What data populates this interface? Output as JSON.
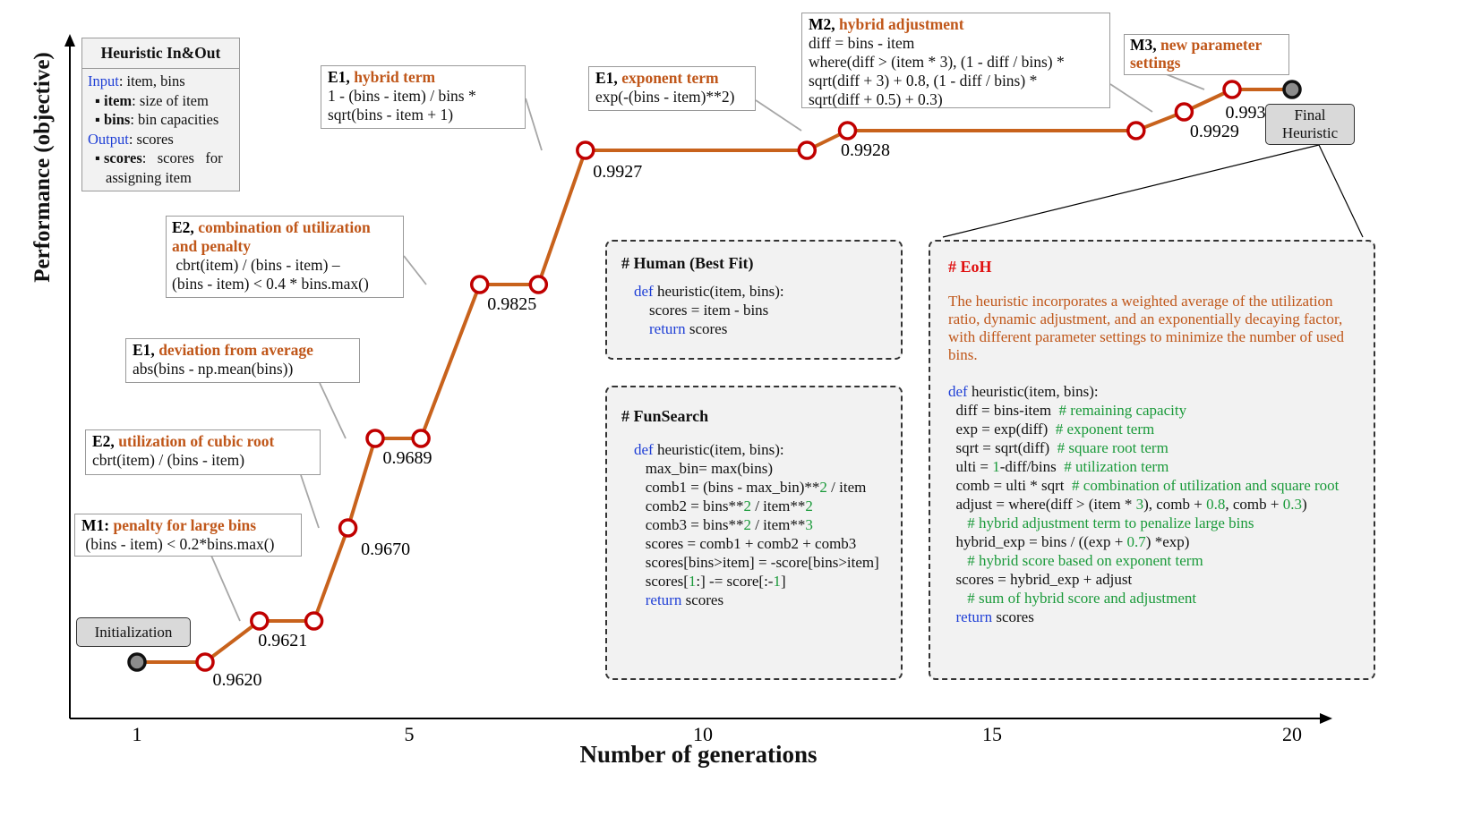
{
  "chart_data": {
    "type": "line",
    "xlabel": "Number of generations",
    "ylabel": "Performance (objective)",
    "x_ticks": [
      1,
      5,
      10,
      15,
      20
    ],
    "xlim": [
      1,
      20
    ],
    "start_marker_x": 1,
    "end_marker_x": 20,
    "points": [
      {
        "x": 1,
        "y": 0.962
      },
      {
        "x": 2.0,
        "y": 0.962,
        "label": "0.9620"
      },
      {
        "x": 2.8,
        "y": 0.9621,
        "label": "0.9621"
      },
      {
        "x": 3.6,
        "y": 0.9621
      },
      {
        "x": 4.1,
        "y": 0.967,
        "label": "0.9670"
      },
      {
        "x": 4.5,
        "y": 0.9689,
        "label": "0.9689"
      },
      {
        "x": 5.2,
        "y": 0.9689
      },
      {
        "x": 6.2,
        "y": 0.9825,
        "label": "0.9825"
      },
      {
        "x": 7.2,
        "y": 0.9825
      },
      {
        "x": 8.0,
        "y": 0.9927,
        "label": "0.9927"
      },
      {
        "x": 11.8,
        "y": 0.9927
      },
      {
        "x": 12.5,
        "y": 0.9928,
        "label": "0.9928"
      },
      {
        "x": 17.4,
        "y": 0.9928
      },
      {
        "x": 18.2,
        "y": 0.9929,
        "label": "0.9929"
      },
      {
        "x": 19.0,
        "y": 0.9932,
        "label": "0.9932"
      },
      {
        "x": 20,
        "y": 0.9932
      }
    ]
  },
  "colors": {
    "line": "#c8621c",
    "marker_ring": "#c00000",
    "accent_text": "#c0571a",
    "keyword": "#1f3fd6",
    "number": "#1a9a3a"
  },
  "in_out": {
    "title": "Heuristic In&Out",
    "input_label": "Input",
    "input_text": ": item, bins",
    "item_key": "item",
    "item_text": ": size of item",
    "bins_key": "bins",
    "bins_text": ": bin capacities",
    "output_label": "Output",
    "output_text": ": scores",
    "scores_key": "scores",
    "scores_text": ":   scores   for",
    "scores_text2": "assigning item"
  },
  "initialization_label": "Initialization",
  "final_label_1": "Final",
  "final_label_2": "Heuristic",
  "annotations": [
    {
      "op": "M1:",
      "name": "penalty for large bins",
      "lines": [
        " (bins - item) < 0.2*bins.max()"
      ]
    },
    {
      "op": "E2,",
      "name": "utilization of cubic root",
      "lines": [
        "cbrt(item) / (bins - item)"
      ]
    },
    {
      "op": "E1,",
      "name": "deviation from average",
      "lines": [
        "abs(bins - np.mean(bins))"
      ]
    },
    {
      "op": "E2,",
      "name": "combination of utilization",
      "name2": "and penalty",
      "lines": [
        " cbrt(item) / (bins - item) –",
        "(bins - item) < 0.4 * bins.max()"
      ]
    },
    {
      "op": "E1,",
      "name": "hybrid term",
      "lines": [
        "1 - (bins - item) / bins *",
        "sqrt(bins - item + 1)"
      ]
    },
    {
      "op": "E1,",
      "name": "exponent term",
      "lines": [
        "exp(-(bins - item)**2)"
      ]
    },
    {
      "op": "M2,",
      "name": "hybrid adjustment",
      "lines": [
        "diff = bins - item",
        "where(diff > (item * 3), (1 - diff / bins) *",
        "sqrt(diff + 3) + 0.8, (1 - diff / bins) *",
        "sqrt(diff + 0.5) + 0.3)"
      ]
    },
    {
      "op": "M3,",
      "name": "new parameter",
      "name2": "settings",
      "lines": []
    }
  ],
  "human": {
    "title": "# Human (Best Fit)",
    "code": [
      [
        {
          "t": "def",
          "c": "kw"
        },
        {
          "t": " heuristic(item, bins):"
        }
      ],
      [
        {
          "t": "    scores = item - bins"
        }
      ],
      [
        {
          "t": "    "
        },
        {
          "t": "return",
          "c": "kw"
        },
        {
          "t": " scores"
        }
      ]
    ]
  },
  "funsearch": {
    "title": "# FunSearch",
    "code": [
      [
        {
          "t": "def",
          "c": "kw"
        },
        {
          "t": " heuristic(item, bins):"
        }
      ],
      [
        {
          "t": "   max_bin= max(bins)"
        }
      ],
      [
        {
          "t": "   comb1 = (bins - max_bin)**"
        },
        {
          "t": "2",
          "c": "num"
        },
        {
          "t": " / item"
        }
      ],
      [
        {
          "t": "   comb2 = bins**"
        },
        {
          "t": "2",
          "c": "num"
        },
        {
          "t": " / item**"
        },
        {
          "t": "2",
          "c": "num"
        }
      ],
      [
        {
          "t": "   comb3 = bins**"
        },
        {
          "t": "2",
          "c": "num"
        },
        {
          "t": " / item**"
        },
        {
          "t": "3",
          "c": "num"
        }
      ],
      [
        {
          "t": "   scores = comb1 + comb2 + comb3"
        }
      ],
      [
        {
          "t": "   scores[bins>item] = -score[bins>item]"
        }
      ],
      [
        {
          "t": "   scores["
        },
        {
          "t": "1",
          "c": "num"
        },
        {
          "t": ":] -= score[:-"
        },
        {
          "t": "1",
          "c": "num"
        },
        {
          "t": "]"
        }
      ],
      [
        {
          "t": "   "
        },
        {
          "t": "return",
          "c": "kw"
        },
        {
          "t": " scores"
        }
      ]
    ]
  },
  "eoh": {
    "title": "# EoH",
    "description": [
      "The heuristic incorporates a weighted average of the utilization",
      "ratio, dynamic adjustment, and an exponentially decaying factor,",
      "with different parameter settings to minimize the number of used",
      "bins."
    ],
    "code": [
      [
        {
          "t": "def",
          "c": "kw"
        },
        {
          "t": " heuristic(item, bins):"
        }
      ],
      [
        {
          "t": "  diff = bins-item  "
        },
        {
          "t": "# remaining capacity",
          "c": "cm"
        }
      ],
      [
        {
          "t": "  exp = exp(diff)  "
        },
        {
          "t": "# exponent term",
          "c": "cm"
        }
      ],
      [
        {
          "t": "  sqrt = sqrt(diff)  "
        },
        {
          "t": "# square root term",
          "c": "cm"
        }
      ],
      [
        {
          "t": "  ulti = "
        },
        {
          "t": "1",
          "c": "num"
        },
        {
          "t": "-diff/bins  "
        },
        {
          "t": "# utilization term",
          "c": "cm"
        }
      ],
      [
        {
          "t": "  comb = ulti * sqrt  "
        },
        {
          "t": "# combination of utilization and square root",
          "c": "cm"
        }
      ],
      [
        {
          "t": "  adjust = where(diff > (item * "
        },
        {
          "t": "3",
          "c": "num"
        },
        {
          "t": "), comb + "
        },
        {
          "t": "0.8",
          "c": "num"
        },
        {
          "t": ", comb + "
        },
        {
          "t": "0.3",
          "c": "num"
        },
        {
          "t": ")"
        }
      ],
      [
        {
          "t": "     "
        },
        {
          "t": "# hybrid adjustment term to penalize large bins",
          "c": "cm"
        }
      ],
      [
        {
          "t": "  hybrid_exp = bins / ((exp + "
        },
        {
          "t": "0.7",
          "c": "num"
        },
        {
          "t": ") *exp)"
        }
      ],
      [
        {
          "t": "     "
        },
        {
          "t": "# hybrid score based on exponent term",
          "c": "cm"
        }
      ],
      [
        {
          "t": "  scores = hybrid_exp + adjust"
        }
      ],
      [
        {
          "t": "     "
        },
        {
          "t": "# sum of hybrid score and adjustment",
          "c": "cm"
        }
      ],
      [
        {
          "t": "  "
        },
        {
          "t": "return",
          "c": "kw"
        },
        {
          "t": " scores"
        }
      ]
    ]
  }
}
